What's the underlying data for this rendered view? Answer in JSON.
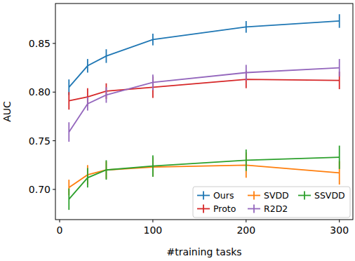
{
  "chart_data": {
    "type": "line",
    "x_label": "#training tasks",
    "y_label": "AUC",
    "x": [
      10,
      30,
      50,
      100,
      200,
      300
    ],
    "series": [
      {
        "name": "Ours",
        "color": "#1f77b4",
        "values": [
          0.805,
          0.827,
          0.837,
          0.854,
          0.867,
          0.873
        ],
        "errors": [
          0.008,
          0.007,
          0.007,
          0.006,
          0.006,
          0.007
        ]
      },
      {
        "name": "SVDD",
        "color": "#ff7f0e",
        "values": [
          0.702,
          0.715,
          0.72,
          0.723,
          0.725,
          0.717
        ],
        "errors": [
          0.008,
          0.01,
          0.009,
          0.01,
          0.013,
          0.012
        ]
      },
      {
        "name": "SSVDD",
        "color": "#2ca02c",
        "values": [
          0.69,
          0.712,
          0.72,
          0.724,
          0.73,
          0.733
        ],
        "errors": [
          0.011,
          0.01,
          0.01,
          0.011,
          0.011,
          0.012
        ]
      },
      {
        "name": "Proto",
        "color": "#d62728",
        "values": [
          0.791,
          0.795,
          0.801,
          0.805,
          0.813,
          0.812
        ],
        "errors": [
          0.009,
          0.009,
          0.008,
          0.011,
          0.009,
          0.009
        ]
      },
      {
        "name": "R2D2",
        "color": "#9467bd",
        "values": [
          0.759,
          0.788,
          0.797,
          0.81,
          0.82,
          0.825
        ],
        "errors": [
          0.01,
          0.007,
          0.008,
          0.008,
          0.008,
          0.009
        ]
      }
    ],
    "xlim": [
      -4.5,
      314.5
    ],
    "ylim": [
      0.669,
      0.891
    ],
    "xticks": [
      0,
      100,
      200,
      300
    ],
    "yticks": [
      {
        "value": 0.7,
        "label": "0.70"
      },
      0.75,
      {
        "value": 0.8,
        "label": "0.80"
      },
      0.85
    ],
    "grid": false,
    "legend": "lower right"
  }
}
